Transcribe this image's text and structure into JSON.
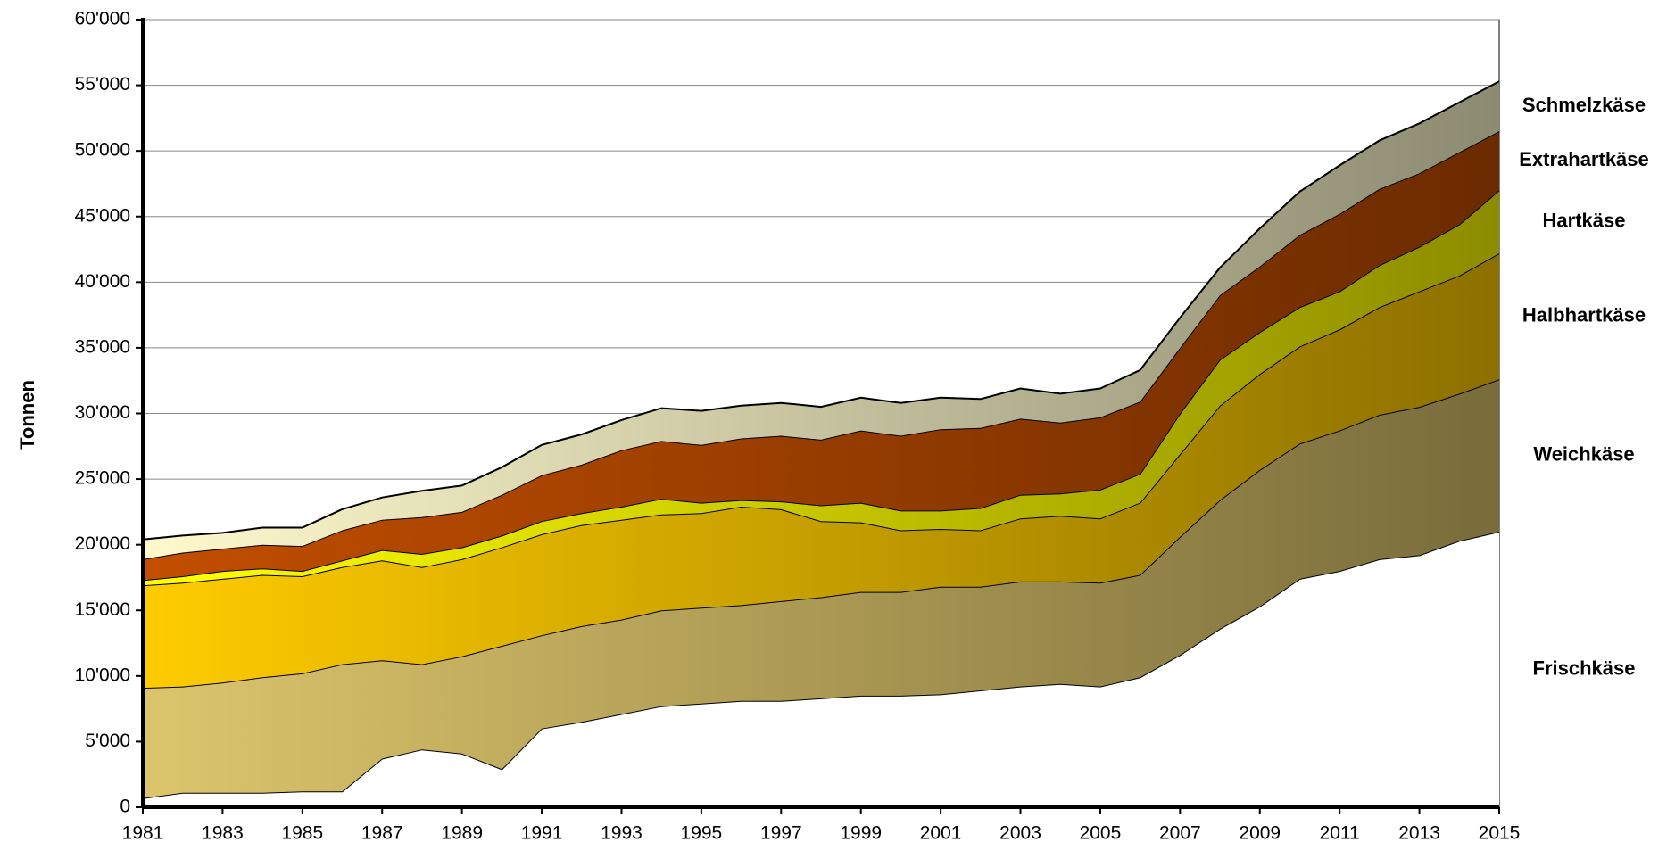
{
  "chart_data": {
    "type": "stacked_area",
    "y_label": "Tonnen",
    "x": [
      1981,
      1982,
      1983,
      1984,
      1985,
      1986,
      1987,
      1988,
      1989,
      1990,
      1991,
      1992,
      1993,
      1994,
      1995,
      1996,
      1997,
      1998,
      1999,
      2000,
      2001,
      2002,
      2003,
      2004,
      2005,
      2006,
      2007,
      2008,
      2009,
      2010,
      2011,
      2012,
      2013,
      2014,
      2015
    ],
    "xlim": [
      1981,
      2015
    ],
    "xticks": [
      1981,
      1983,
      1985,
      1987,
      1989,
      1991,
      1993,
      1995,
      1997,
      1999,
      2001,
      2003,
      2005,
      2007,
      2009,
      2011,
      2013,
      2015
    ],
    "ylim": [
      0,
      60000
    ],
    "yticks": [
      0,
      {
        "value": 5000,
        "label": "5'000"
      },
      {
        "value": 10000,
        "label": "10'000"
      },
      {
        "value": 15000,
        "label": "15'000"
      },
      {
        "value": 20000,
        "label": "20'000"
      },
      {
        "value": 25000,
        "label": "25'000"
      },
      {
        "value": 30000,
        "label": "30'000"
      },
      {
        "value": 35000,
        "label": "35'000"
      },
      {
        "value": 40000,
        "label": "40'000"
      },
      {
        "value": 45000,
        "label": "45'000"
      },
      {
        "value": 50000,
        "label": "50'000"
      },
      {
        "value": 55000,
        "label": "55'000"
      },
      {
        "value": 60000,
        "label": "60'000"
      }
    ],
    "grid": true,
    "gradient": true,
    "series": [
      {
        "name": "Frischkäse",
        "color": "#ffffff",
        "values": [
          700,
          1100,
          1100,
          1100,
          1200,
          1200,
          3700,
          4400,
          4100,
          2900,
          6000,
          6500,
          7100,
          7700,
          7900,
          8100,
          8100,
          8300,
          8500,
          8500,
          8600,
          8900,
          9200,
          9400,
          9200,
          9900,
          11600,
          13600,
          15300,
          17400,
          18000,
          18900,
          19200,
          20300,
          21000
        ]
      },
      {
        "name": "Weichkäse",
        "color": "#dcc56c",
        "values": [
          8400,
          8100,
          8400,
          8800,
          9000,
          9700,
          7500,
          6500,
          7400,
          9400,
          7100,
          7300,
          7200,
          7300,
          7300,
          7300,
          7600,
          7700,
          7900,
          7900,
          8200,
          7900,
          8000,
          7800,
          7900,
          7800,
          9000,
          9800,
          10400,
          10300,
          10700,
          11000,
          11300,
          11200,
          11600
        ]
      },
      {
        "name": "Halbhartkäse",
        "color": "#ffcc00",
        "values": [
          7800,
          7900,
          7900,
          7800,
          7400,
          7400,
          7600,
          7400,
          7400,
          7500,
          7700,
          7700,
          7600,
          7300,
          7200,
          7500,
          7000,
          5800,
          5300,
          4700,
          4400,
          4300,
          4800,
          5000,
          4900,
          5500,
          6300,
          7200,
          7300,
          7400,
          7700,
          8200,
          8800,
          9000,
          9600
        ]
      },
      {
        "name": "Hartkäse",
        "color": "#ffff00",
        "values": [
          400,
          500,
          600,
          500,
          400,
          500,
          800,
          1000,
          900,
          900,
          1000,
          900,
          1000,
          1200,
          800,
          500,
          600,
          1200,
          1500,
          1500,
          1400,
          1700,
          1800,
          1700,
          2200,
          2200,
          3100,
          3500,
          3200,
          3000,
          2900,
          3200,
          3400,
          3900,
          4800
        ]
      },
      {
        "name": "Extrahartkäse",
        "color": "#c24e00",
        "values": [
          1600,
          1800,
          1700,
          1800,
          1900,
          2300,
          2300,
          2800,
          2700,
          3100,
          3500,
          3700,
          4300,
          4400,
          4400,
          4700,
          5000,
          5000,
          5500,
          5700,
          6200,
          6100,
          5800,
          5400,
          5500,
          5500,
          5000,
          4900,
          5000,
          5500,
          5900,
          5800,
          5600,
          5500,
          4500
        ]
      },
      {
        "name": "Schmelzkäse",
        "color": "#fffacd",
        "values": [
          1500,
          1300,
          1200,
          1300,
          1400,
          1600,
          1700,
          2000,
          2000,
          2100,
          2300,
          2300,
          2300,
          2500,
          2600,
          2500,
          2500,
          2500,
          2500,
          2500,
          2400,
          2200,
          2300,
          2200,
          2200,
          2400,
          2300,
          2100,
          2900,
          3300,
          3700,
          3700,
          3800,
          3800,
          3800
        ]
      }
    ]
  }
}
